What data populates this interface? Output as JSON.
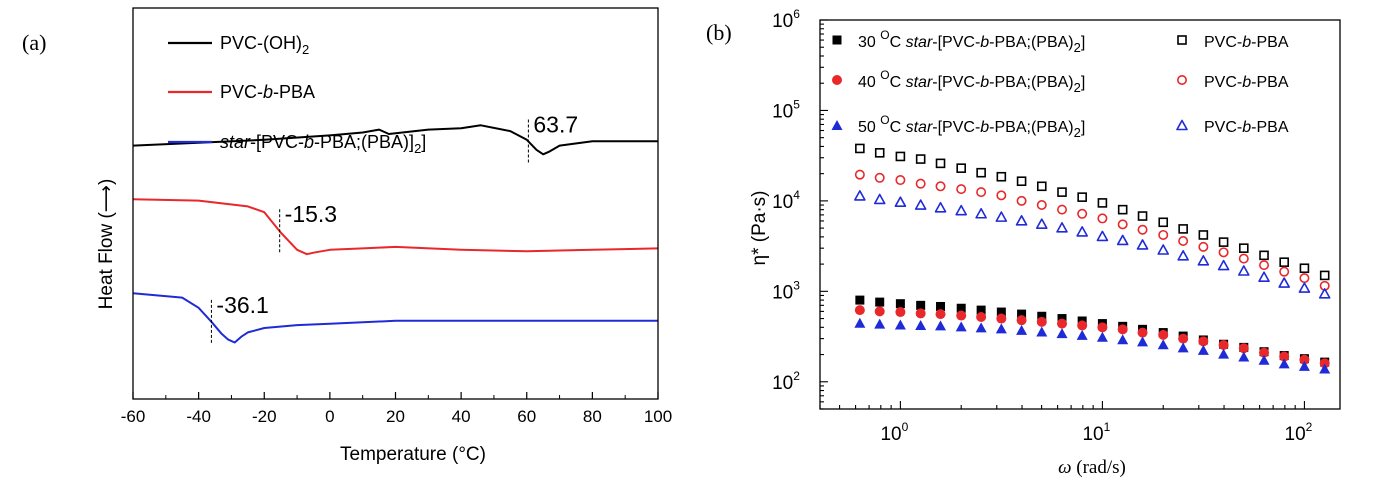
{
  "chart_data": [
    {
      "panel_label": "(a)",
      "type": "line",
      "xlabel_main": "Temperature (",
      "xlabel_unit": "°C",
      "xlabel_close": ")",
      "ylabel": "Heat Flow (⟶)",
      "xlim": [
        -60,
        100
      ],
      "xticks": [
        "-60",
        "-40",
        "-20",
        "0",
        "20",
        "40",
        "60",
        "80",
        "100"
      ],
      "legend": [
        {
          "base": "PVC-(OH)",
          "sub": "2",
          "color": "#000000"
        },
        {
          "pre": "PVC-",
          "italic": "b",
          "post": "-PBA",
          "color": "#e8282b"
        },
        {
          "italic_pre": "star",
          "pre": "-[PVC-",
          "italic": "b",
          "post": "-PBA;(PBA)]",
          "sub": "2",
          "tail": "]",
          "color": "#1f2bd6"
        }
      ],
      "annotations": [
        {
          "text": "63.7",
          "x": 60.5,
          "series": 0
        },
        {
          "text": "-15.3",
          "x": -15.3,
          "series": 1
        },
        {
          "text": "-36.1",
          "x": -36.1,
          "series": 2
        }
      ],
      "series": [
        {
          "name": "PVC-(OH)2",
          "color": "#000000",
          "x": [
            -60,
            -40,
            -20,
            0,
            10,
            15,
            18,
            30,
            40,
            46,
            55,
            60,
            63,
            65,
            67,
            70,
            80,
            90,
            100
          ],
          "y": [
            0.0,
            0.02,
            0.04,
            0.07,
            0.09,
            0.11,
            0.08,
            0.11,
            0.12,
            0.14,
            0.1,
            0.04,
            -0.03,
            -0.06,
            -0.04,
            0.0,
            0.03,
            0.03,
            0.03
          ]
        },
        {
          "name": "PVC-b-PBA",
          "color": "#e8282b",
          "x": [
            -60,
            -40,
            -25,
            -20,
            -15,
            -10,
            -7,
            -5,
            0,
            10,
            20,
            40,
            60,
            80,
            100
          ],
          "y": [
            -0.37,
            -0.38,
            -0.42,
            -0.46,
            -0.6,
            -0.72,
            -0.75,
            -0.74,
            -0.72,
            -0.71,
            -0.7,
            -0.72,
            -0.73,
            -0.72,
            -0.71
          ]
        },
        {
          "name": "star-[PVC-b-PBA;(PBA)]2",
          "color": "#1f2bd6",
          "x": [
            -60,
            -45,
            -40,
            -36,
            -33,
            -31,
            -29,
            -27,
            -25,
            -20,
            -10,
            0,
            20,
            40,
            60,
            80,
            100
          ],
          "y": [
            -1.02,
            -1.05,
            -1.12,
            -1.22,
            -1.3,
            -1.34,
            -1.36,
            -1.32,
            -1.29,
            -1.26,
            -1.24,
            -1.23,
            -1.21,
            -1.21,
            -1.21,
            -1.21,
            -1.21
          ]
        }
      ],
      "ylim": [
        -1.75,
        0.95
      ],
      "xtick_values": [
        -60,
        -40,
        -20,
        0,
        20,
        40,
        60,
        80,
        100
      ]
    },
    {
      "panel_label": "(b)",
      "type": "scatter",
      "xlabel_sym": "ω",
      "xlabel_unit": " (rad/s)",
      "ylabel": "η* (Pa·s)",
      "xscale": "log",
      "yscale": "log",
      "xlim": [
        0.4,
        150
      ],
      "ylim": [
        50,
        1000000
      ],
      "xticks": [
        {
          "base": "10",
          "exp": "0",
          "value": 1
        },
        {
          "base": "10",
          "exp": "1",
          "value": 10
        },
        {
          "base": "10",
          "exp": "2",
          "value": 100
        }
      ],
      "yticks": [
        {
          "base": "10",
          "exp": "2",
          "value": 100
        },
        {
          "base": "10",
          "exp": "3",
          "value": 1000
        },
        {
          "base": "10",
          "exp": "4",
          "value": 10000
        },
        {
          "base": "10",
          "exp": "5",
          "value": 100000
        },
        {
          "base": "10",
          "exp": "6",
          "value": 1000000
        }
      ],
      "legend": [
        {
          "temp": "30 ",
          "sup": "O",
          "unit": "C ",
          "star": "star",
          "mid": "-[PVC-",
          "b": "b",
          "post": "-PBA;(PBA)",
          "sub": "2",
          "tail": "]",
          "other": "PVC-",
          "other_b": "b",
          "other_post": "-PBA",
          "marker": "square",
          "color": "#000000"
        },
        {
          "temp": "40 ",
          "sup": "O",
          "unit": "C ",
          "star": "star",
          "mid": "-[PVC-",
          "b": "b",
          "post": "-PBA;(PBA)",
          "sub": "2",
          "tail": "]",
          "other": "PVC-",
          "other_b": "b",
          "other_post": "-PBA",
          "marker": "circle",
          "color": "#e8282b"
        },
        {
          "temp": "50 ",
          "sup": "O",
          "unit": "C ",
          "star": "star",
          "mid": "-[PVC-",
          "b": "b",
          "post": "-PBA;(PBA)",
          "sub": "2",
          "tail": "]",
          "other": "PVC-",
          "other_b": "b",
          "other_post": "-PBA",
          "marker": "triangle",
          "color": "#1f2bd6"
        }
      ],
      "x": [
        0.63,
        0.79,
        1.0,
        1.26,
        1.58,
        2.0,
        2.51,
        3.16,
        3.98,
        5.01,
        6.31,
        7.94,
        10.0,
        12.6,
        15.8,
        20.0,
        25.1,
        31.6,
        39.8,
        50.1,
        63.1,
        79.4,
        100,
        126
      ],
      "series": [
        {
          "name": "30 °C star",
          "marker": "square",
          "filled": true,
          "color": "#000000",
          "values": [
            800,
            760,
            730,
            700,
            680,
            650,
            620,
            590,
            560,
            530,
            500,
            470,
            440,
            410,
            380,
            350,
            320,
            290,
            260,
            240,
            215,
            195,
            180,
            165
          ]
        },
        {
          "name": "40 °C star",
          "marker": "circle",
          "filled": true,
          "color": "#e8282b",
          "values": [
            620,
            600,
            590,
            570,
            560,
            540,
            520,
            500,
            480,
            460,
            440,
            420,
            400,
            380,
            350,
            330,
            300,
            280,
            255,
            235,
            210,
            190,
            175,
            160
          ]
        },
        {
          "name": "50 °C star",
          "marker": "triangle",
          "filled": true,
          "color": "#1f2bd6",
          "values": [
            450,
            440,
            430,
            425,
            420,
            410,
            400,
            390,
            375,
            360,
            345,
            330,
            315,
            295,
            280,
            260,
            240,
            225,
            205,
            190,
            175,
            160,
            150,
            140
          ]
        },
        {
          "name": "30 °C PVC-b-PBA",
          "marker": "square",
          "filled": false,
          "color": "#000000",
          "values": [
            38000,
            34000,
            31000,
            29000,
            26000,
            23000,
            20500,
            18500,
            16500,
            14500,
            12500,
            11000,
            9500,
            8000,
            6800,
            5800,
            4900,
            4200,
            3500,
            3000,
            2500,
            2100,
            1800,
            1500
          ]
        },
        {
          "name": "40 °C PVC-b-PBA",
          "marker": "circle",
          "filled": false,
          "color": "#e8282b",
          "values": [
            19500,
            18000,
            17000,
            15500,
            14500,
            13500,
            12500,
            11500,
            10000,
            9000,
            8000,
            7200,
            6400,
            5500,
            4800,
            4200,
            3600,
            3100,
            2700,
            2300,
            1950,
            1650,
            1400,
            1150
          ]
        },
        {
          "name": "50 °C PVC-b-PBA",
          "marker": "triangle",
          "filled": false,
          "color": "#1f2bd6",
          "values": [
            11500,
            10500,
            9800,
            9100,
            8500,
            7900,
            7300,
            6700,
            6100,
            5600,
            5100,
            4600,
            4100,
            3700,
            3300,
            2900,
            2500,
            2200,
            1950,
            1700,
            1450,
            1250,
            1100,
            950
          ]
        }
      ]
    }
  ]
}
